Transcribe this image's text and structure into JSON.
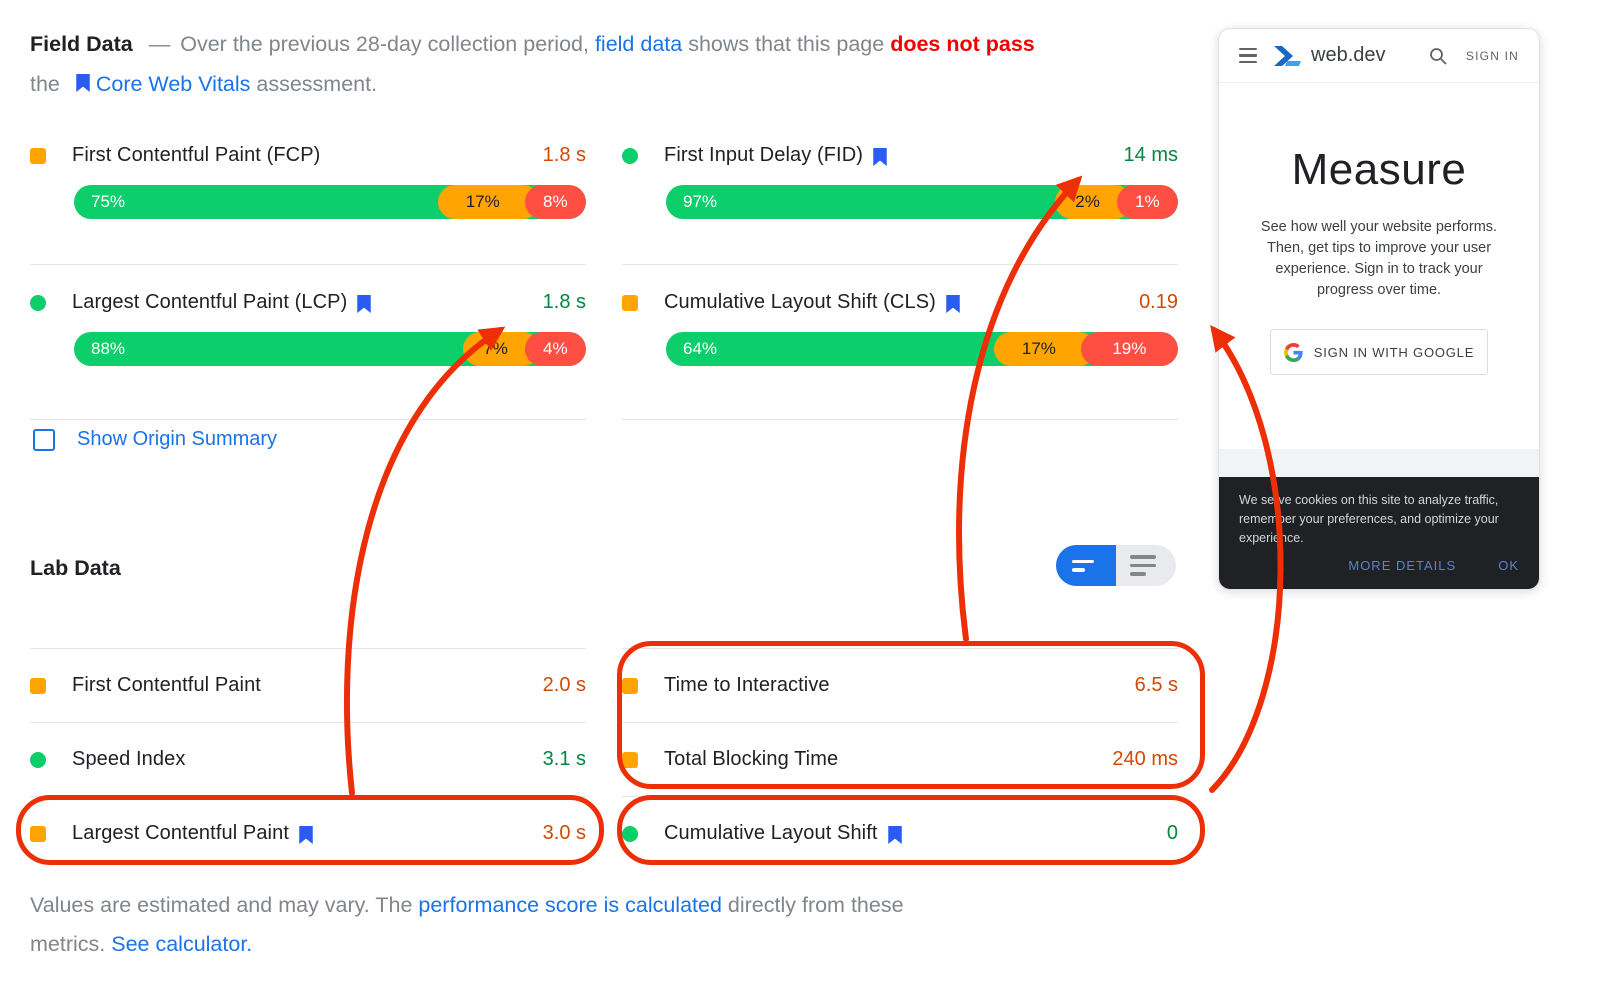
{
  "colors": {
    "bar_green": "#0cce6b",
    "bar_orange": "#ffa400",
    "bar_red": "#ff4e42",
    "value_good": "#018642",
    "value_average": "#d14904",
    "link_blue": "#1a73e8",
    "fail_red": "#f00000",
    "annotation_red": "#ed2f08",
    "bookmark_blue": "#2a5cf4"
  },
  "field_header": {
    "title": "Field Data",
    "dash": "—",
    "text_1": "Over the previous 28-day collection period, ",
    "link_field_data": "field data",
    "text_2": " shows that this page ",
    "fail_text": "does not pass",
    "text_3": "the ",
    "link_cwv": "Core Web Vitals",
    "text_4": " assessment."
  },
  "field_metrics": [
    {
      "label": "First Contentful Paint (FCP)",
      "value": "1.8 s",
      "status": "average",
      "icon": "square",
      "bookmark": false,
      "bar": [
        {
          "pct": 75,
          "label": "75%"
        },
        {
          "pct": 17,
          "label": "17%"
        },
        {
          "pct": 8,
          "label": "8%"
        }
      ]
    },
    {
      "label": "First Input Delay (FID)",
      "value": "14 ms",
      "status": "good",
      "icon": "circle",
      "bookmark": true,
      "bar": [
        {
          "pct": 97,
          "label": "97%"
        },
        {
          "pct": 2,
          "label": "2%"
        },
        {
          "pct": 1,
          "label": "1%"
        }
      ]
    },
    {
      "label": "Largest Contentful Paint (LCP)",
      "value": "1.8 s",
      "status": "good",
      "icon": "circle",
      "bookmark": true,
      "bar": [
        {
          "pct": 88,
          "label": "88%"
        },
        {
          "pct": 7,
          "label": "7%"
        },
        {
          "pct": 4,
          "label": "4%"
        }
      ]
    },
    {
      "label": "Cumulative Layout Shift (CLS)",
      "value": "0.19",
      "status": "average",
      "icon": "square",
      "bookmark": true,
      "bar": [
        {
          "pct": 64,
          "label": "64%"
        },
        {
          "pct": 17,
          "label": "17%"
        },
        {
          "pct": 19,
          "label": "19%"
        }
      ]
    }
  ],
  "origin_summary_label": "Show Origin Summary",
  "lab": {
    "title": "Lab Data",
    "rows": [
      {
        "label": "First Contentful Paint",
        "value": "2.0 s",
        "status": "average",
        "icon": "square",
        "bookmark": false
      },
      {
        "label": "Speed Index",
        "value": "3.1 s",
        "status": "good",
        "icon": "circle",
        "bookmark": false
      },
      {
        "label": "Largest Contentful Paint",
        "value": "3.0 s",
        "status": "average",
        "icon": "square",
        "bookmark": true
      },
      {
        "label": "Time to Interactive",
        "value": "6.5 s",
        "status": "average",
        "icon": "square",
        "bookmark": false
      },
      {
        "label": "Total Blocking Time",
        "value": "240 ms",
        "status": "average",
        "icon": "square",
        "bookmark": false
      },
      {
        "label": "Cumulative Layout Shift",
        "value": "0",
        "status": "good",
        "icon": "circle",
        "bookmark": true
      }
    ]
  },
  "footnote": {
    "text_1": "Values are estimated and may vary. The ",
    "link_1": "performance score is calculated",
    "text_2": " directly from these",
    "text_3": "metrics. ",
    "link_2": "See calculator."
  },
  "phone": {
    "brand": "web.dev",
    "sign_in": "SIGN IN",
    "title": "Measure",
    "description": "See how well your website performs. Then, get tips to improve your user experience. Sign in to track your progress over time.",
    "google_button": "SIGN IN WITH GOOGLE",
    "cookie_text": "We serve cookies on this site to analyze traffic, remember your preferences, and optimize your experience.",
    "more_details": "MORE DETAILS",
    "ok": "OK",
    "icons": {
      "menu": "hamburger-icon",
      "search": "search-icon",
      "logo": "web-dev-logo-icon",
      "google": "google-g-icon"
    }
  }
}
